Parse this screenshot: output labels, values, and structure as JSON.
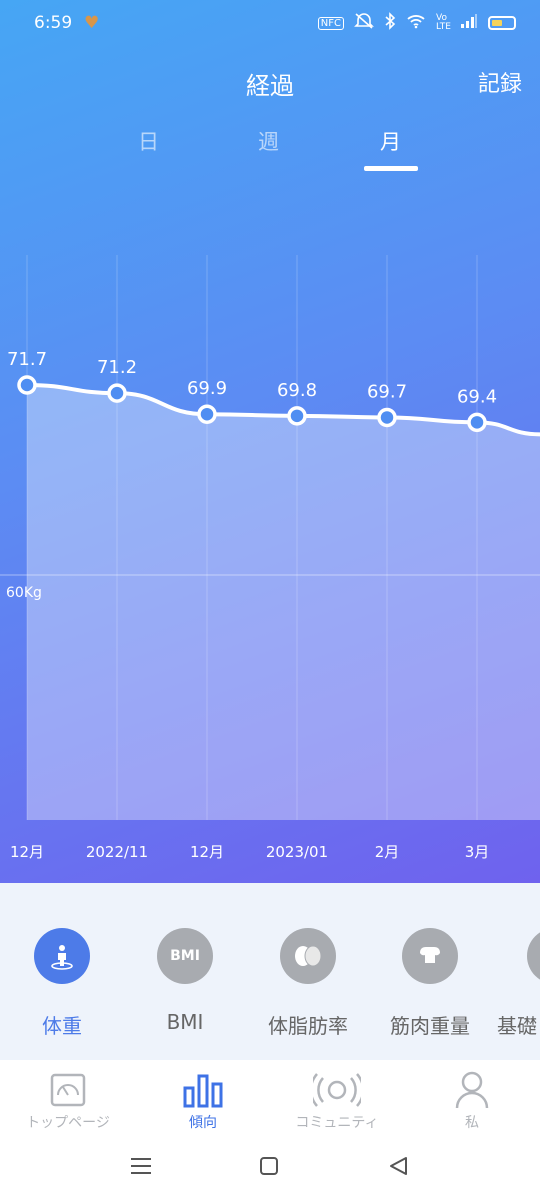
{
  "status_bar": {
    "time": "6:59",
    "heart": "♥",
    "nfc": "NFC",
    "volte": "Vo LTE"
  },
  "header": {
    "title": "経過",
    "record_label": "記録"
  },
  "tabs": [
    {
      "label": "日"
    },
    {
      "label": "週"
    },
    {
      "label": "月"
    }
  ],
  "active_tab": "月",
  "chart_data": {
    "type": "area",
    "x": [
      "12月",
      "2022/11",
      "12月",
      "2023/01",
      "2月",
      "3月"
    ],
    "series": [
      {
        "values": [
          71.7,
          71.2,
          69.9,
          69.8,
          69.7,
          69.4
        ]
      }
    ],
    "reference_line": {
      "label": "60Kg",
      "value": 60
    },
    "colors": {
      "line": "#ffffff",
      "fill": "rgba(255,255,255,0.35)"
    }
  },
  "metrics": [
    {
      "label": "体重",
      "icon": "person-scale-icon",
      "active": true
    },
    {
      "label": "BMI",
      "icon": "bmi-icon",
      "icon_text": "BMI",
      "active": false
    },
    {
      "label": "体脂肪率",
      "icon": "fat-icon",
      "active": false
    },
    {
      "label": "筋肉重量",
      "icon": "muscle-icon",
      "active": false
    },
    {
      "label": "基礎",
      "icon": "basal-icon",
      "active": false
    }
  ],
  "bottom_nav": [
    {
      "label": "トップページ",
      "icon": "gauge-icon"
    },
    {
      "label": "傾向",
      "icon": "bar-chart-icon",
      "active": true
    },
    {
      "label": "コミュニティ",
      "icon": "broadcast-icon"
    },
    {
      "label": "私",
      "icon": "person-icon"
    }
  ],
  "colors": {
    "accent": "#3e72e6",
    "inactive": "#a8abb0"
  }
}
